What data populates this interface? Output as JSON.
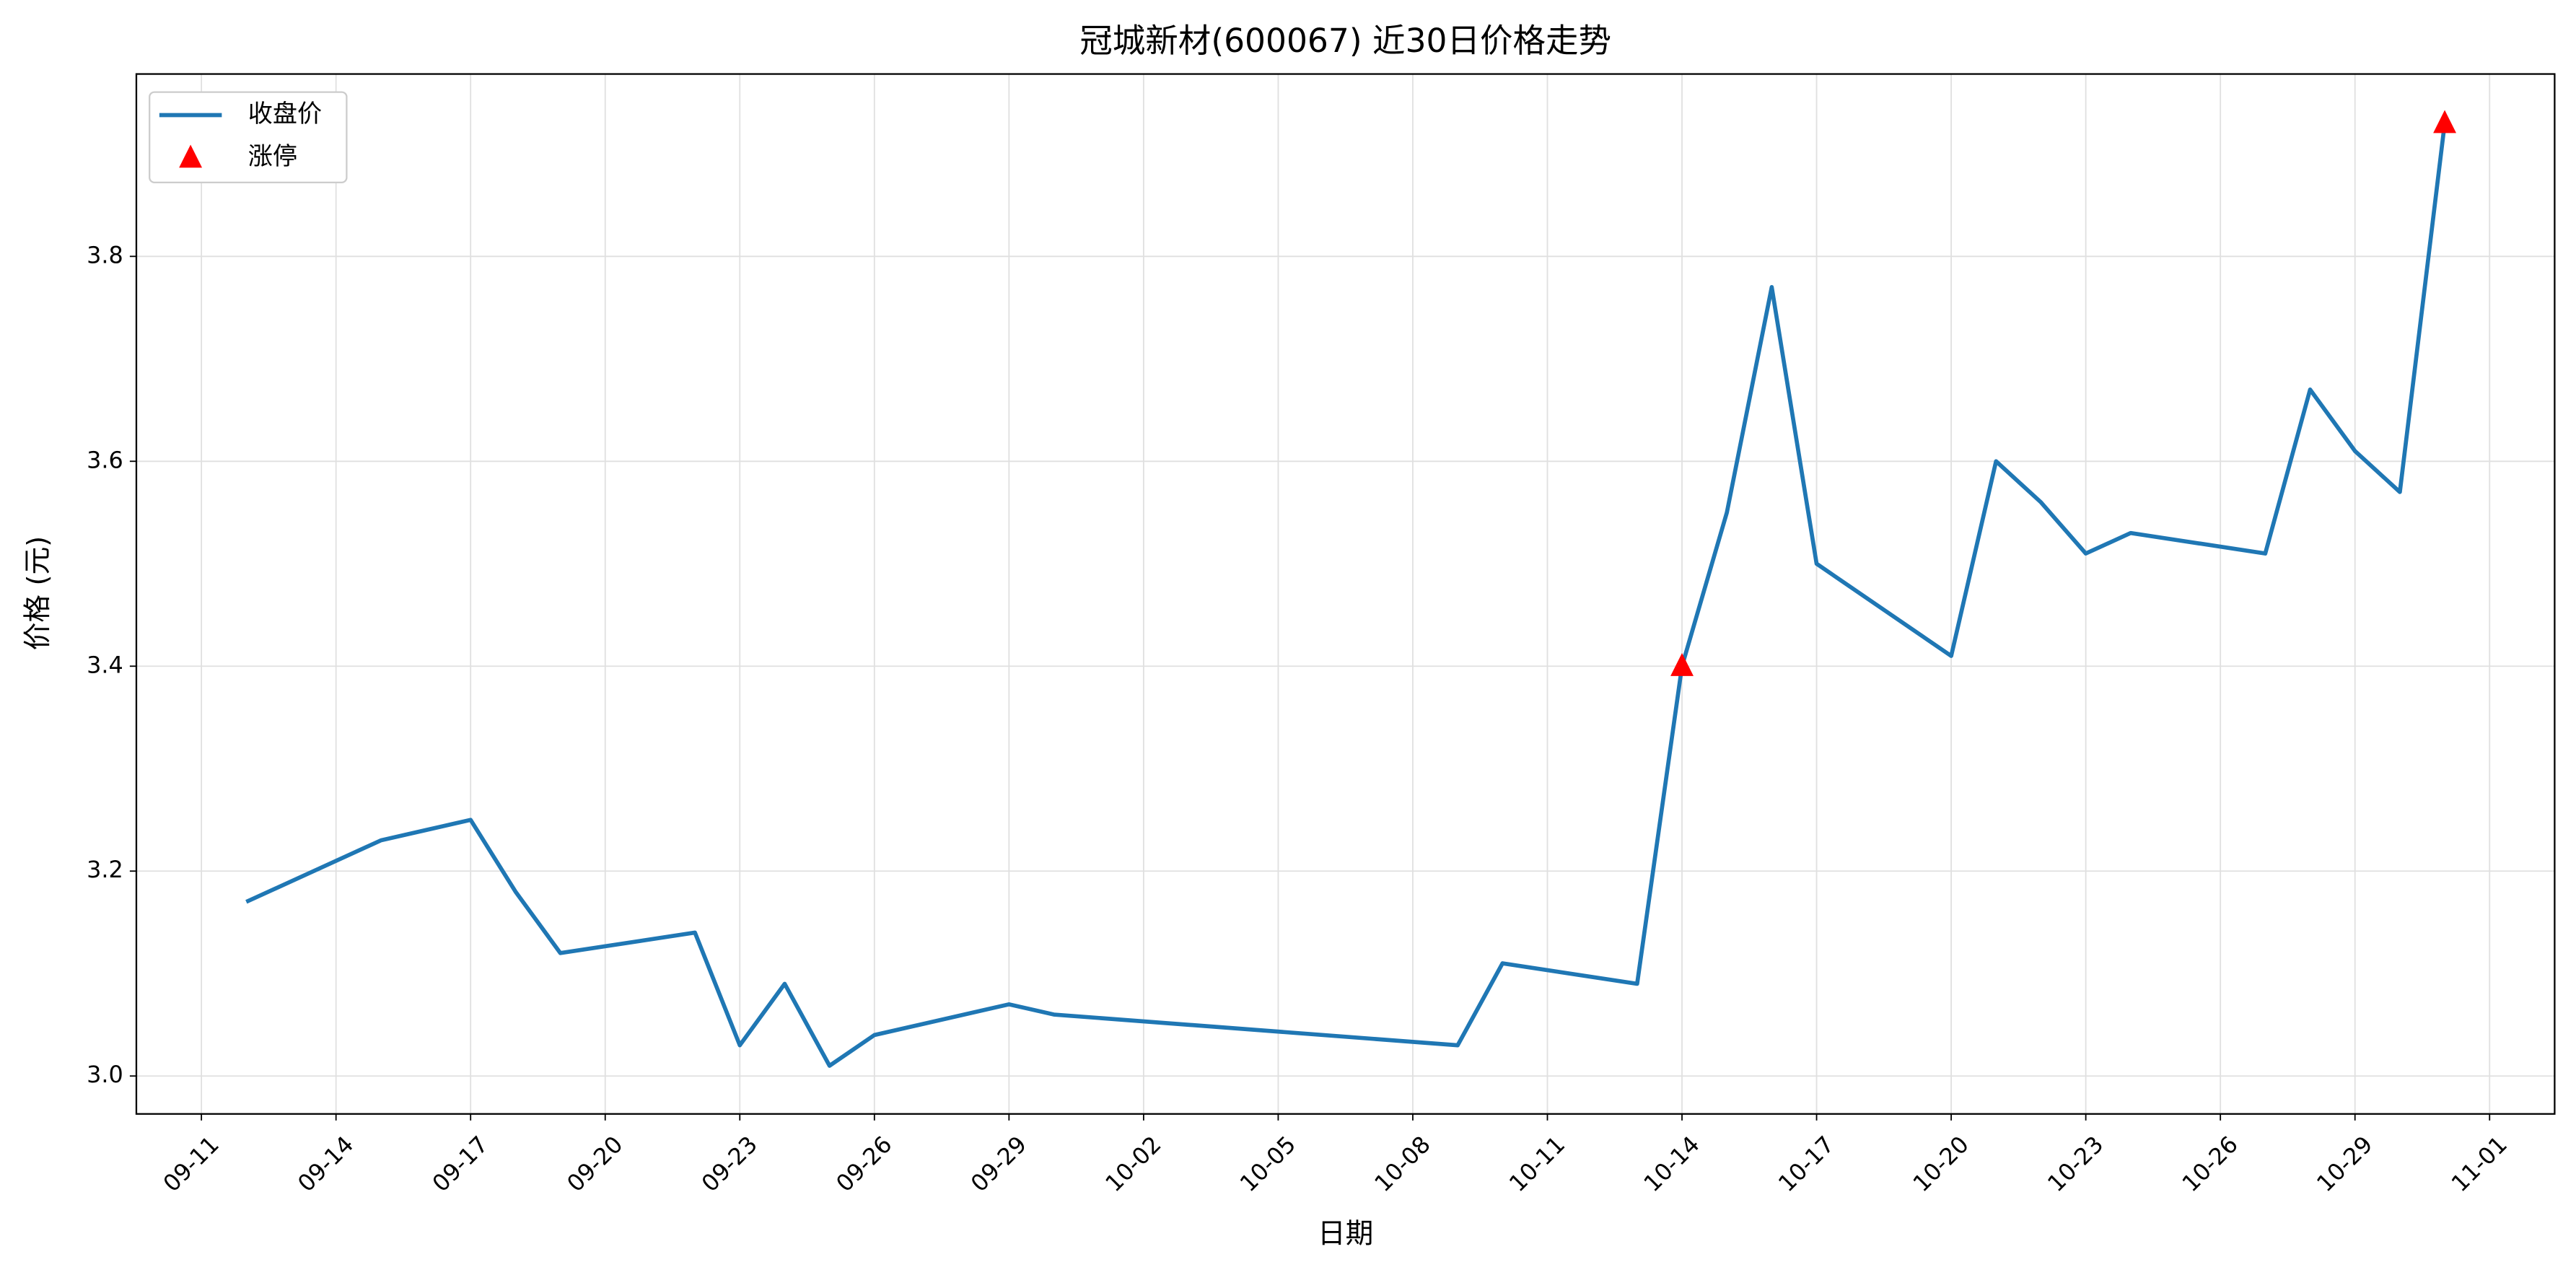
{
  "chart_data": {
    "type": "line",
    "title": "冠城新材(600067) 近30日价格走势",
    "x_label": "日期",
    "y_label": "价格 (元)",
    "series": [
      {
        "name": "收盘价",
        "type": "line",
        "color": "#1f77b4",
        "x": [
          "09-12",
          "09-15",
          "09-16",
          "09-17",
          "09-18",
          "09-19",
          "09-22",
          "09-23",
          "09-24",
          "09-25",
          "09-26",
          "09-29",
          "09-30",
          "10-09",
          "10-10",
          "10-13",
          "10-14",
          "10-15",
          "10-16",
          "10-17",
          "10-20",
          "10-21",
          "10-22",
          "10-23",
          "10-24",
          "10-27",
          "10-28",
          "10-29",
          "10-30",
          "10-31"
        ],
        "values": [
          3.17,
          3.23,
          3.24,
          3.25,
          3.18,
          3.12,
          3.14,
          3.03,
          3.09,
          3.01,
          3.04,
          3.07,
          3.06,
          3.03,
          3.11,
          3.09,
          3.4,
          3.55,
          3.77,
          3.5,
          3.41,
          3.6,
          3.56,
          3.51,
          3.53,
          3.51,
          3.67,
          3.61,
          3.57,
          3.93
        ]
      },
      {
        "name": "涨停",
        "type": "scatter",
        "marker": "triangle",
        "color": "#ff0000",
        "x": [
          "10-14",
          "10-31"
        ],
        "values": [
          3.4,
          3.93
        ]
      }
    ],
    "xticks": [
      "09-11",
      "09-14",
      "09-17",
      "09-20",
      "09-23",
      "09-26",
      "09-29",
      "10-02",
      "10-05",
      "10-08",
      "10-11",
      "10-14",
      "10-17",
      "10-20",
      "10-23",
      "10-26",
      "10-29",
      "11-01"
    ],
    "ylim": [
      2.963,
      3.978
    ],
    "yticks": [
      {
        "value": 3.0,
        "label": "3.0"
      },
      {
        "value": 3.2,
        "label": "3.2"
      },
      {
        "value": 3.4,
        "label": "3.4"
      },
      {
        "value": 3.6,
        "label": "3.6"
      },
      {
        "value": 3.8,
        "label": "3.8"
      }
    ],
    "grid": true,
    "legend": "upper-left"
  }
}
